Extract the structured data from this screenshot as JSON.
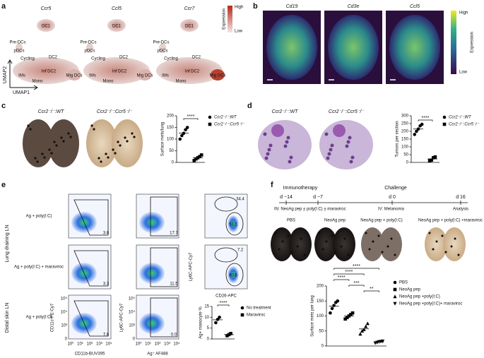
{
  "panels": {
    "a": {
      "letter": "a",
      "genes": [
        "Ccr5",
        "Ccl5",
        "Ccr7"
      ],
      "clusters": [
        "DC1",
        "Pre-DCs",
        "pDCs",
        "Cycling",
        "DC2",
        "IMs",
        "Inf DC2",
        "Mono",
        "Mig DCs"
      ],
      "colorbar": {
        "title": "Expression",
        "high": "High",
        "low": "Low"
      },
      "xaxis": "UMAP1",
      "yaxis": "UMAP2"
    },
    "b": {
      "letter": "b",
      "genes": [
        "Cd19",
        "Cd3e",
        "Ccl5"
      ],
      "colorbar": {
        "title": "Expression",
        "high": "High",
        "low": "Low"
      }
    },
    "c": {
      "letter": "c",
      "images": [
        "Ccr2⁻/⁻:WT",
        "Ccr2⁻/⁻:Ccr5⁻/⁻"
      ]
    },
    "d": {
      "letter": "d",
      "images": [
        "Ccr2⁻/⁻:WT",
        "Ccr2⁻/⁻:Ccr5⁻/⁻"
      ]
    },
    "e": {
      "letter": "e",
      "rows": [
        "Ag + poly(I:C)",
        "Ag + poly(I:C) + maraviroc",
        "Ag + poly(I:C)"
      ],
      "groups": [
        "Lung draining LN",
        "Distal skin LN"
      ],
      "axes": [
        "CD11c-PE-Cy7",
        "CD11b-BUV395",
        "Ly6C-APC-Cy7",
        "Ag⁺ AF488",
        "Ly6C-APC-Cy7",
        "CD26-APC"
      ],
      "gates": [
        [
          "3.6",
          "17.7",
          "34.4",
          "53.1"
        ],
        [
          "3.3",
          "11.5",
          "7.2",
          "80.6"
        ],
        [
          "7.6",
          "0.0"
        ]
      ],
      "ticks": {
        "y": [
          "0",
          "10³",
          "10⁴",
          "10⁵"
        ],
        "x": [
          "10⁰",
          "10¹",
          "10²",
          "10³",
          "10⁴"
        ]
      }
    },
    "f": {
      "letter": "f",
      "timeline": {
        "phases": [
          "Immunotherapy",
          "Challenge"
        ],
        "days": [
          "d −14",
          "d −7",
          "d 0",
          "d 16"
        ],
        "events": [
          "IN: NeoAg pep ± poly(I:C) ± maraviroc",
          "IV: Melanoma",
          "Analysis"
        ]
      },
      "images": [
        "PBS",
        "NeoAg pep",
        "NeoAg pep + poly(I:C)",
        "NeoAg pep + poly(I:C) +maraviroc"
      ]
    }
  },
  "chart_data": [
    {
      "type": "dot",
      "ylabel": "Surface mets/lung",
      "ylim": [
        0,
        200
      ],
      "yticks": [
        0,
        50,
        100,
        150,
        200
      ],
      "series": [
        {
          "name": "Ccr2⁻/⁻:WT",
          "marker": "circle",
          "color": "#000000",
          "values": [
            100,
            115,
            125,
            140,
            150
          ]
        },
        {
          "name": "Ccr2⁻/⁻:Ccr5⁻/⁻",
          "marker": "square",
          "color": "#000000",
          "values": [
            8,
            15,
            20,
            25,
            32
          ]
        }
      ],
      "significance": [
        "****"
      ]
    },
    {
      "type": "dot",
      "ylabel": "Tumors per section",
      "ylim": [
        0,
        300
      ],
      "yticks": [
        0,
        50,
        100,
        150,
        200,
        250,
        300
      ],
      "series": [
        {
          "name": "Ccr2⁻/⁻:WT",
          "marker": "circle",
          "color": "#000000",
          "values": [
            180,
            200,
            215,
            235,
            245
          ]
        },
        {
          "name": "Ccr2⁻/⁻:Ccr5⁻/⁻",
          "marker": "square",
          "color": "#000000",
          "values": [
            10,
            15,
            30,
            35
          ]
        }
      ],
      "significance": [
        "****"
      ]
    },
    {
      "type": "dot",
      "ylabel": "Ag+ monocyte %",
      "ylim": [
        0,
        15
      ],
      "yticks": [
        0,
        5,
        10,
        15
      ],
      "series": [
        {
          "name": "No treatment",
          "marker": "circle",
          "color": "#000000",
          "values": [
            7.5,
            9,
            10
          ]
        },
        {
          "name": "Maraviroc",
          "marker": "square",
          "color": "#000000",
          "values": [
            1.5,
            2,
            2.5
          ]
        }
      ],
      "significance": [
        "****"
      ]
    },
    {
      "type": "dot",
      "ylabel": "Surface mets per lung",
      "ylim": [
        0,
        200
      ],
      "yticks": [
        0,
        50,
        100,
        150,
        200
      ],
      "series": [
        {
          "name": "PBS",
          "marker": "circle",
          "color": "#000000",
          "values": [
            110,
            125,
            135,
            145,
            150
          ]
        },
        {
          "name": "NeoAg pep",
          "marker": "square",
          "color": "#000000",
          "values": [
            90,
            95,
            100,
            105,
            110
          ]
        },
        {
          "name": "NeoAg pep +poly(I:C)",
          "marker": "triangle",
          "color": "#000000",
          "values": [
            40,
            50,
            55,
            65,
            75
          ]
        },
        {
          "name": "NeoAg pep +poly(I:C)+ maraviroc",
          "marker": "triangle-down",
          "color": "#000000",
          "values": [
            10,
            12,
            14,
            15,
            16
          ]
        }
      ],
      "significance": [
        "****",
        "****",
        "****",
        "***",
        "**"
      ]
    }
  ]
}
